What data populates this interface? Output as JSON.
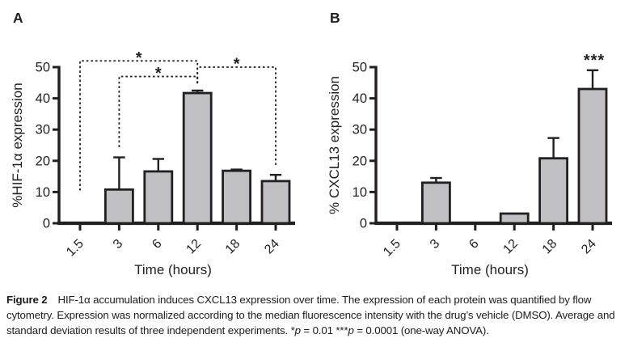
{
  "style": {
    "ink": "#231f20",
    "bar_fill": "#c0bfc3",
    "background": "#ffffff"
  },
  "chart_data": [
    {
      "type": "bar",
      "panel_label": "A",
      "xlabel": "Time (hours)",
      "ylabel": "%HIF-1α expression",
      "categories": [
        "1.5",
        "3",
        "6",
        "12",
        "18",
        "24"
      ],
      "values": [
        0,
        10.8,
        16.6,
        41.7,
        16.8,
        13.5
      ],
      "errors": [
        0,
        10.3,
        4.0,
        0.8,
        0.4,
        2.0
      ],
      "ylim": [
        0,
        50
      ],
      "yticks": [
        0,
        10,
        20,
        30,
        40,
        50
      ],
      "grid": "off",
      "legend": "none",
      "significance_brackets": [
        {
          "from": "1.5",
          "to": "12",
          "label": "*",
          "y": 52,
          "from_drop": 10.5,
          "to_drop": 44.8
        },
        {
          "from": "3",
          "to": "12",
          "label": "*",
          "y": 47,
          "from_drop": 24.4,
          "to_drop": 44.8
        },
        {
          "from": "12",
          "to": "24",
          "label": "*",
          "y": 50,
          "from_drop": 44.8,
          "to_drop": 17.9
        }
      ],
      "annotations": []
    },
    {
      "type": "bar",
      "panel_label": "B",
      "xlabel": "Time (hours)",
      "ylabel": "% CXCL13 expression",
      "categories": [
        "1.5",
        "3",
        "6",
        "12",
        "18",
        "24"
      ],
      "values": [
        0,
        13.0,
        0,
        3.1,
        20.8,
        43.0
      ],
      "errors": [
        0,
        1.5,
        0,
        0,
        6.5,
        6.0
      ],
      "ylim": [
        0,
        50
      ],
      "yticks": [
        0,
        10,
        20,
        30,
        40,
        50
      ],
      "grid": "off",
      "legend": "none",
      "significance_brackets": [],
      "annotations": [
        {
          "category": "24",
          "label": "***"
        }
      ]
    }
  ],
  "caption": {
    "segments": [
      {
        "text": "Figure 2",
        "bold": true
      },
      {
        "text": "HIF-1α accumulation induces CXCL13 expression over time. The expression of each protein was quantified by flow cytometry. Expression was normalized according to the median fluorescence intensity with the drug’s vehicle (DMSO). Average and standard deviation results of three independent experiments. "
      },
      {
        "text": "*"
      },
      {
        "text": "p",
        "italic": true
      },
      {
        "text": " = 0.01 "
      },
      {
        "text": "***"
      },
      {
        "text": "p",
        "italic": true
      },
      {
        "text": " = 0.0001 (one-way ANOVA)."
      }
    ]
  }
}
